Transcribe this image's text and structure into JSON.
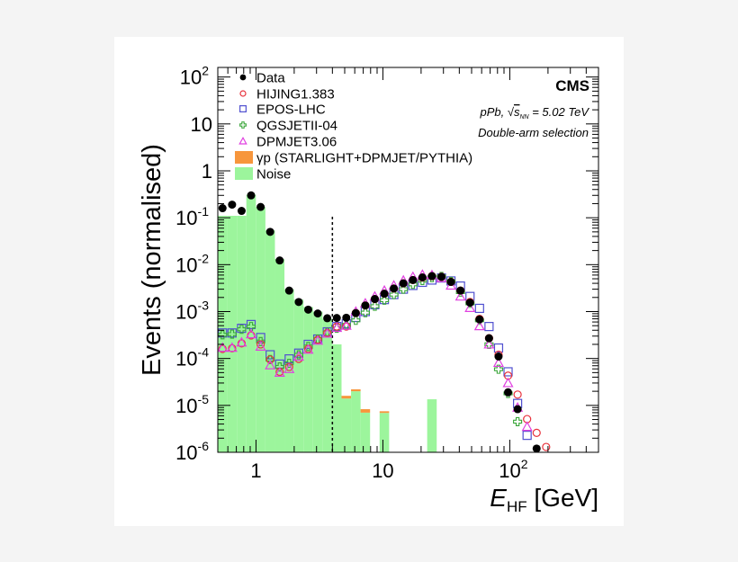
{
  "chart_data": {
    "type": "scatter",
    "xlabel": {
      "main": "E",
      "sub": "HF",
      "unit": " [GeV]"
    },
    "ylabel": "Events (normalised)",
    "xscale": "log",
    "yscale": "log",
    "xlim": [
      0.5,
      500
    ],
    "ylim": [
      1e-06,
      160
    ],
    "grid": false,
    "legend_placement": "top-left",
    "xticks": [
      {
        "value": 1,
        "base": "1",
        "exp": ""
      },
      {
        "value": 10,
        "base": "10",
        "exp": ""
      },
      {
        "value": 100,
        "base": "10",
        "exp": "2"
      }
    ],
    "yticks": [
      {
        "value": 100,
        "base": "10",
        "exp": "2"
      },
      {
        "value": 10,
        "base": "10",
        "exp": ""
      },
      {
        "value": 1,
        "base": "1",
        "exp": ""
      },
      {
        "value": 0.1,
        "base": "10",
        "exp": "-1"
      },
      {
        "value": 0.01,
        "base": "10",
        "exp": "-2"
      },
      {
        "value": 0.001,
        "base": "10",
        "exp": "-3"
      },
      {
        "value": 0.0001,
        "base": "10",
        "exp": "-4"
      },
      {
        "value": 1e-05,
        "base": "10",
        "exp": "-5"
      },
      {
        "value": 1e-06,
        "base": "10",
        "exp": "-6"
      }
    ],
    "selection_cut_GeV": 4,
    "x": [
      0.545,
      0.648,
      0.77,
      0.915,
      1.088,
      1.293,
      1.537,
      1.826,
      2.171,
      2.58,
      3.066,
      3.644,
      4.331,
      5.147,
      6.117,
      7.27,
      8.64,
      10.27,
      12.2,
      14.5,
      17.24,
      20.49,
      24.35,
      28.94,
      34.39,
      40.87,
      48.58,
      57.73,
      68.61,
      81.54,
      96.9,
      115.2,
      136.9,
      162.7,
      193.4
    ],
    "series": [
      {
        "name": "Data",
        "style": "points",
        "marker": "filled-circle",
        "color": "#000000",
        "values": [
          0.16,
          0.19,
          0.14,
          0.3,
          0.17,
          0.05,
          0.0123,
          0.0028,
          0.0016,
          0.0011,
          0.00091,
          0.00072,
          0.00073,
          0.00074,
          0.00093,
          0.00135,
          0.00185,
          0.0024,
          0.0031,
          0.004,
          0.0047,
          0.00535,
          0.0057,
          0.0055,
          0.0043,
          0.0028,
          0.00155,
          0.00068,
          0.00027,
          0.00011,
          1.9e-05,
          8.3e-06,
          null,
          1.2e-06,
          null
        ]
      },
      {
        "name": "HIJING1.383",
        "style": "points",
        "marker": "open-circle",
        "color": "#e8323c",
        "values": [
          0.00016,
          0.000165,
          0.00021,
          0.00031,
          0.0002,
          9.5e-05,
          5.2e-05,
          6.6e-05,
          9.8e-05,
          0.00016,
          0.00025,
          0.00035,
          0.00048,
          0.00048,
          0.00093,
          0.00135,
          0.00185,
          0.0024,
          0.0031,
          0.004,
          0.0047,
          0.0053,
          0.0057,
          0.0055,
          0.0043,
          0.0028,
          0.0016,
          0.0007,
          0.00027,
          0.00012,
          4.3e-05,
          1.7e-05,
          5.1e-06,
          2.6e-06,
          1.3e-06
        ]
      },
      {
        "name": "EPOS-LHC",
        "style": "points",
        "marker": "open-square",
        "color": "#5050d0",
        "values": [
          0.00035,
          0.00035,
          0.00044,
          0.00053,
          0.00028,
          0.00012,
          7.6e-05,
          9.8e-05,
          0.00013,
          0.0002,
          0.00026,
          0.00037,
          0.00048,
          0.00055,
          0.00075,
          0.001,
          0.0014,
          0.0018,
          0.0023,
          0.003,
          0.0036,
          0.0042,
          0.0047,
          0.0052,
          0.0045,
          0.0035,
          0.0021,
          0.00117,
          0.00048,
          0.000167,
          5.2e-05,
          1.1e-05,
          2.3e-06,
          null,
          null
        ]
      },
      {
        "name": "QGSJETII-04",
        "style": "points",
        "marker": "open-cross",
        "color": "#3aa63a",
        "values": [
          0.00032,
          0.00033,
          0.00042,
          0.00048,
          0.00023,
          9.5e-05,
          6.6e-05,
          7.9e-05,
          0.00012,
          0.00018,
          0.00026,
          0.00036,
          0.00044,
          0.00052,
          0.00065,
          0.00095,
          0.0013,
          0.00175,
          0.0023,
          0.003,
          0.0038,
          0.0046,
          0.0053,
          0.0056,
          0.0044,
          0.0026,
          0.0015,
          0.00065,
          0.0002,
          5.9e-05,
          1.8e-05,
          4.5e-06,
          null,
          null,
          null
        ]
      },
      {
        "name": "DPMJET3.06",
        "style": "points",
        "marker": "open-triangle",
        "color": "#e040e0",
        "values": [
          0.00017,
          0.00017,
          0.00022,
          0.00033,
          0.00018,
          7.2e-05,
          5e-05,
          6e-05,
          0.00011,
          0.000155,
          0.00024,
          0.00034,
          0.00045,
          0.0005,
          0.001,
          0.0015,
          0.0021,
          0.0028,
          0.0036,
          0.0046,
          0.0055,
          0.0061,
          0.006,
          0.0052,
          0.0036,
          0.0021,
          0.0012,
          0.00049,
          0.0002,
          8.1e-05,
          3e-05,
          9e-06,
          3.5e-06,
          null,
          null
        ]
      },
      {
        "name": "γp (STARLIGHT+DPMJET/PYTHIA)",
        "style": "stacked-histogram",
        "color": "#f7963c",
        "values": [
          0,
          0,
          0,
          0,
          0,
          0,
          0,
          0,
          0,
          0,
          0,
          0,
          0,
          2e-06,
          2e-06,
          1.3e-06,
          0,
          6e-07,
          0,
          0,
          0,
          0,
          0,
          0,
          0,
          0,
          0,
          0,
          0,
          0,
          0,
          0,
          0,
          0,
          0
        ]
      },
      {
        "name": "Noise",
        "style": "histogram",
        "color": "#9cf59c",
        "values": [
          0.11,
          0.11,
          0.11,
          0.31,
          0.17,
          0.054,
          0.0132,
          0.003,
          0.0018,
          0.00125,
          0.001,
          0.0007,
          0.0002,
          1.4e-05,
          2e-05,
          7e-06,
          0,
          6.9e-06,
          0,
          0,
          0,
          0,
          1.35e-05,
          0,
          0,
          0,
          0,
          0,
          0,
          0,
          0,
          0,
          0,
          0,
          0
        ]
      }
    ],
    "annotations": {
      "experiment": "CMS",
      "system_prefix": "pPb, ",
      "energy_sqrt": "s",
      "energy_sub": "NN",
      "energy_value": " = 5.02 TeV",
      "selection": "Double-arm selection"
    }
  }
}
